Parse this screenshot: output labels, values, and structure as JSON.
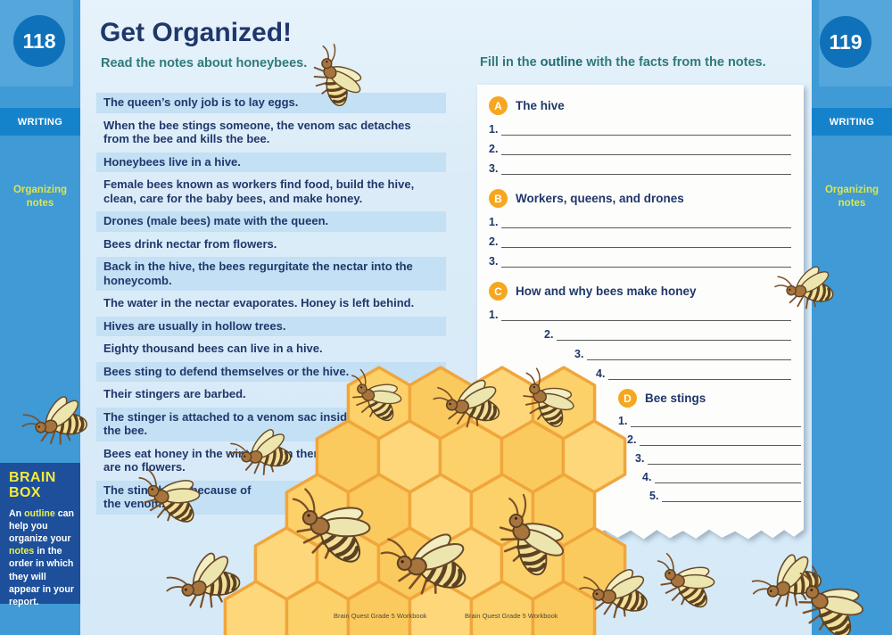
{
  "colors": {
    "sidebar_blue": "#3f9ad5",
    "sidebar_light_square": "#54a6db",
    "page_circle_blue": "#0e71b9",
    "section_band_blue": "#1583cb",
    "page_background": "#dcedf9",
    "note_highlight": "#c3e0f4",
    "navy_text": "#20376b",
    "teal_text": "#2f7a7a",
    "topic_yellow": "#dce64e",
    "brain_box_bg": "#1d4f9a",
    "brain_box_yellow": "#f3e93e",
    "outline_badge_orange": "#f6a71f",
    "honeycomb_fill": "#fcd169",
    "honeycomb_stroke": "#f0a63c"
  },
  "left_sidebar": {
    "page_number": "118",
    "section_label": "WRITING",
    "topic_label": "Organizing notes",
    "brain_box": {
      "title": "BRAIN BOX",
      "body_segments": [
        {
          "text": "An ",
          "hl": false
        },
        {
          "text": "outline",
          "hl": true
        },
        {
          "text": " can help you organize your ",
          "hl": false
        },
        {
          "text": "notes",
          "hl": true
        },
        {
          "text": " in the order in which they will appear in your report.",
          "hl": false
        }
      ]
    }
  },
  "right_sidebar": {
    "page_number": "119",
    "section_label": "WRITING",
    "topic_label": "Organizing notes"
  },
  "left_page": {
    "title": "Get Organized!",
    "instruction": "Read the notes about honeybees.",
    "notes": [
      {
        "text": "The queen’s only job is to lay eggs.",
        "highlight": true
      },
      {
        "text": "When the bee stings someone, the venom sac detaches from the bee and kills the bee.",
        "highlight": false
      },
      {
        "text": "Honeybees live in a hive.",
        "highlight": true
      },
      {
        "text": "Female bees known as workers find food, build the hive, clean, care for the baby bees, and make honey.",
        "highlight": false
      },
      {
        "text": "Drones (male bees) mate with the queen.",
        "highlight": true
      },
      {
        "text": "Bees drink nectar from flowers.",
        "highlight": false
      },
      {
        "text": "Back in the hive, the bees regurgitate the nectar into the honeycomb.",
        "highlight": true
      },
      {
        "text": "The water in the nectar evaporates. Honey is left behind.",
        "highlight": false
      },
      {
        "text": "Hives are usually in hollow trees.",
        "highlight": true
      },
      {
        "text": "Eighty thousand bees can live in a hive.",
        "highlight": false
      },
      {
        "text": "Bees sting to defend themselves or the hive.",
        "highlight": true
      },
      {
        "text": "Their stingers are barbed.",
        "highlight": false
      },
      {
        "text": "The stinger is attached to a venom sac inside the bee.",
        "highlight": true
      },
      {
        "text": "Bees eat honey in the winter when there are no flowers.",
        "highlight": false
      },
      {
        "text": "The sting hurts because of the venom.",
        "highlight": true
      }
    ],
    "footer": "Brain Quest Grade 5 Workbook"
  },
  "right_page": {
    "instruction_segments": [
      {
        "text": "Fill in the ",
        "bold": false
      },
      {
        "text": "outline",
        "bold": true
      },
      {
        "text": " with the facts from the notes.",
        "bold": false
      }
    ],
    "outline_sections": [
      {
        "letter": "A",
        "heading": "The hive",
        "line_numbers": [
          "1.",
          "2.",
          "3."
        ]
      },
      {
        "letter": "B",
        "heading": "Workers, queens, and drones",
        "line_numbers": [
          "1.",
          "2.",
          "3."
        ]
      },
      {
        "letter": "C",
        "heading": "How and why bees make honey",
        "line_numbers": [
          "1.",
          "2.",
          "3.",
          "4."
        ]
      },
      {
        "letter": "D",
        "heading": "Bee stings",
        "line_numbers": [
          "1.",
          "2.",
          "3.",
          "4.",
          "5."
        ]
      }
    ],
    "footer": "Brain Quest Grade 5 Workbook"
  }
}
